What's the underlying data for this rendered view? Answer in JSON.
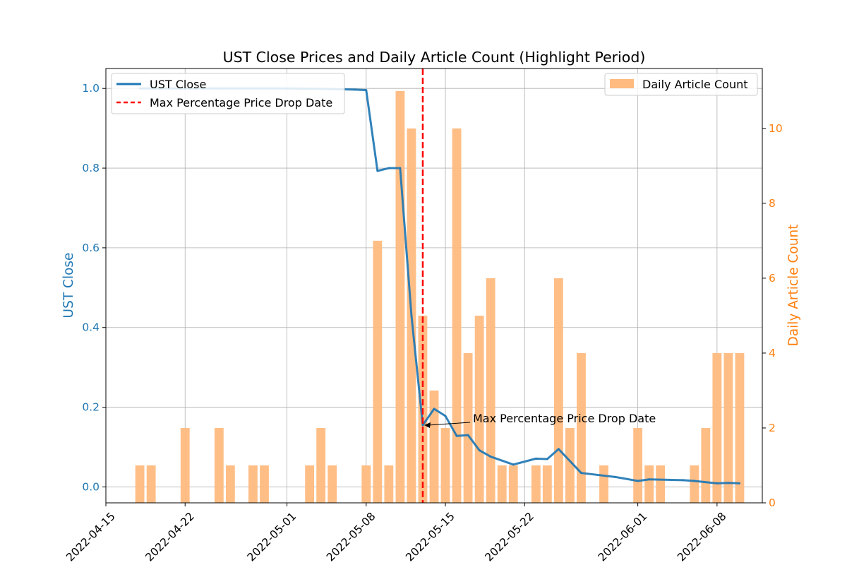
{
  "chart_data": {
    "type": "bar+line",
    "title": "UST Close Prices and Daily Article Count (Highlight Period)",
    "x_type": "date",
    "xlim": [
      "2022-04-15",
      "2022-06-12"
    ],
    "x_ticks": [
      "2022-04-15",
      "2022-04-22",
      "2022-05-01",
      "2022-05-08",
      "2022-05-15",
      "2022-05-22",
      "2022-06-01",
      "2022-06-08"
    ],
    "ylabel_left": "UST Close",
    "ylabel_right": "Daily Article Count",
    "ylim_left": [
      -0.04,
      1.05
    ],
    "ylim_right": [
      0,
      11.6
    ],
    "y_ticks_left": [
      "0.0",
      "0.2",
      "0.4",
      "0.6",
      "0.8",
      "1.0"
    ],
    "y_ticks_right": [
      "0",
      "2",
      "4",
      "6",
      "8",
      "10"
    ],
    "grid": true,
    "colors": {
      "line": "#1f77b4",
      "bars": "#ffbb80",
      "bars_axis": "#ff7f0e",
      "vline": "#ff0000"
    },
    "legend_left": {
      "position": "upper-left",
      "entries": [
        "UST Close",
        "Max Percentage Price Drop Date"
      ]
    },
    "legend_right": {
      "position": "upper-right",
      "entries": [
        "Daily Article Count"
      ]
    },
    "annotation": {
      "text": "Max Percentage Price Drop Date",
      "x": "2022-05-13",
      "y": 0.155
    },
    "vline_date": "2022-05-13",
    "series": [
      {
        "name": "UST Close",
        "type": "line",
        "axis": "left",
        "points": [
          [
            "2022-04-18",
            1.0
          ],
          [
            "2022-04-20",
            1.0
          ],
          [
            "2022-04-22",
            1.0
          ],
          [
            "2022-04-25",
            1.0
          ],
          [
            "2022-04-28",
            1.0
          ],
          [
            "2022-05-01",
            1.0
          ],
          [
            "2022-05-04",
            0.999
          ],
          [
            "2022-05-07",
            0.997
          ],
          [
            "2022-05-08",
            0.996
          ],
          [
            "2022-05-09",
            0.793
          ],
          [
            "2022-05-10",
            0.8
          ],
          [
            "2022-05-11",
            0.8
          ],
          [
            "2022-05-12",
            0.43
          ],
          [
            "2022-05-13",
            0.155
          ],
          [
            "2022-05-14",
            0.196
          ],
          [
            "2022-05-15",
            0.178
          ],
          [
            "2022-05-16",
            0.128
          ],
          [
            "2022-05-17",
            0.13
          ],
          [
            "2022-05-18",
            0.092
          ],
          [
            "2022-05-19",
            0.076
          ],
          [
            "2022-05-21",
            0.056
          ],
          [
            "2022-05-23",
            0.071
          ],
          [
            "2022-05-24",
            0.07
          ],
          [
            "2022-05-25",
            0.095
          ],
          [
            "2022-05-27",
            0.035
          ],
          [
            "2022-05-30",
            0.025
          ],
          [
            "2022-06-01",
            0.015
          ],
          [
            "2022-06-02",
            0.019
          ],
          [
            "2022-06-05",
            0.017
          ],
          [
            "2022-06-06",
            0.015
          ],
          [
            "2022-06-08",
            0.009
          ],
          [
            "2022-06-09",
            0.01
          ],
          [
            "2022-06-10",
            0.009
          ]
        ]
      },
      {
        "name": "Daily Article Count",
        "type": "bar",
        "axis": "right",
        "points": [
          [
            "2022-04-18",
            1
          ],
          [
            "2022-04-19",
            1
          ],
          [
            "2022-04-22",
            2
          ],
          [
            "2022-04-25",
            2
          ],
          [
            "2022-04-26",
            1
          ],
          [
            "2022-04-28",
            1
          ],
          [
            "2022-04-29",
            1
          ],
          [
            "2022-05-03",
            1
          ],
          [
            "2022-05-04",
            2
          ],
          [
            "2022-05-05",
            1
          ],
          [
            "2022-05-08",
            1
          ],
          [
            "2022-05-09",
            7
          ],
          [
            "2022-05-10",
            1
          ],
          [
            "2022-05-11",
            11
          ],
          [
            "2022-05-12",
            10
          ],
          [
            "2022-05-13",
            5
          ],
          [
            "2022-05-14",
            3
          ],
          [
            "2022-05-15",
            2
          ],
          [
            "2022-05-16",
            10
          ],
          [
            "2022-05-17",
            4
          ],
          [
            "2022-05-18",
            5
          ],
          [
            "2022-05-19",
            6
          ],
          [
            "2022-05-20",
            1
          ],
          [
            "2022-05-21",
            1
          ],
          [
            "2022-05-23",
            1
          ],
          [
            "2022-05-24",
            1
          ],
          [
            "2022-05-25",
            6
          ],
          [
            "2022-05-26",
            2
          ],
          [
            "2022-05-27",
            4
          ],
          [
            "2022-05-29",
            1
          ],
          [
            "2022-06-01",
            2
          ],
          [
            "2022-06-02",
            1
          ],
          [
            "2022-06-03",
            1
          ],
          [
            "2022-06-06",
            1
          ],
          [
            "2022-06-07",
            2
          ],
          [
            "2022-06-08",
            4
          ],
          [
            "2022-06-09",
            4
          ],
          [
            "2022-06-10",
            4
          ]
        ]
      }
    ]
  }
}
